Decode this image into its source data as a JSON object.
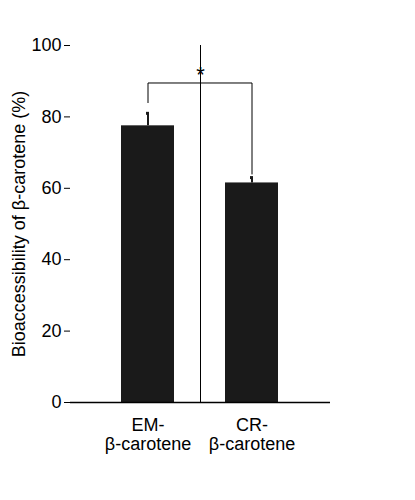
{
  "chart_data": {
    "type": "bar",
    "categories": [
      "EM-\nβ-carotene",
      "CR-\nβ-carotene"
    ],
    "values": [
      77.5,
      61.5
    ],
    "errors": [
      3.5,
      1.5
    ],
    "color": "#1a1a1a",
    "y_label": "Bioaccessibility of β-carotene (%)",
    "ylim": [
      0,
      100
    ],
    "yticks": [
      0,
      20,
      40,
      60,
      80,
      100
    ],
    "grid": false,
    "annotations": [
      {
        "text": "*",
        "between": [
          0,
          1
        ]
      }
    ]
  }
}
